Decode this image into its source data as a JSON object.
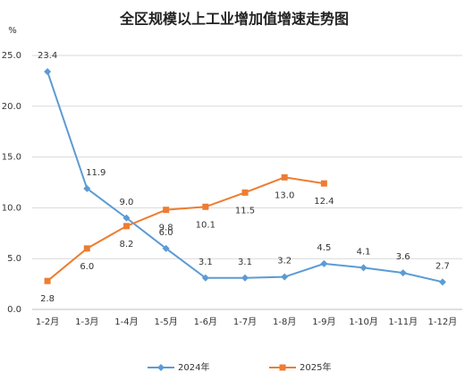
{
  "chart_data": {
    "type": "line",
    "title": "全区规模以上工业增加值增速走势图",
    "y_unit": "%",
    "categories": [
      "1-2月",
      "1-3月",
      "1-4月",
      "1-5月",
      "1-6月",
      "1-7月",
      "1-8月",
      "1-9月",
      "1-10月",
      "1-11月",
      "1-12月"
    ],
    "series": [
      {
        "name": "2024年",
        "color": "#5b9bd5",
        "marker": "diamond",
        "label_position": "above",
        "values": [
          23.4,
          11.9,
          9.0,
          6.0,
          3.1,
          3.1,
          3.2,
          4.5,
          4.1,
          3.6,
          2.7
        ],
        "value_labels": [
          "23.4",
          "11.9",
          "9.0",
          "6.0",
          "3.1",
          "3.1",
          "3.2",
          "4.5",
          "4.1",
          "3.6",
          "2.7"
        ]
      },
      {
        "name": "2025年",
        "color": "#ed7d31",
        "marker": "square",
        "label_position": "below",
        "values": [
          2.8,
          6.0,
          8.2,
          9.8,
          10.1,
          11.5,
          13.0,
          12.4,
          null,
          null,
          null
        ],
        "value_labels": [
          "2.8",
          "6.0",
          "8.2",
          "9.8",
          "10.1",
          "11.5",
          "13.0",
          "12.4",
          null,
          null,
          null
        ]
      }
    ],
    "ylim": [
      0,
      25
    ],
    "yticks": [
      {
        "value": 0,
        "label": "0.0"
      },
      {
        "value": 5,
        "label": "5.0"
      },
      {
        "value": 10,
        "label": "10.0"
      },
      {
        "value": 15,
        "label": "15.0"
      },
      {
        "value": 20,
        "label": "20.0"
      },
      {
        "value": 25,
        "label": "25.0"
      }
    ],
    "grid": true,
    "legend": "bottom"
  }
}
